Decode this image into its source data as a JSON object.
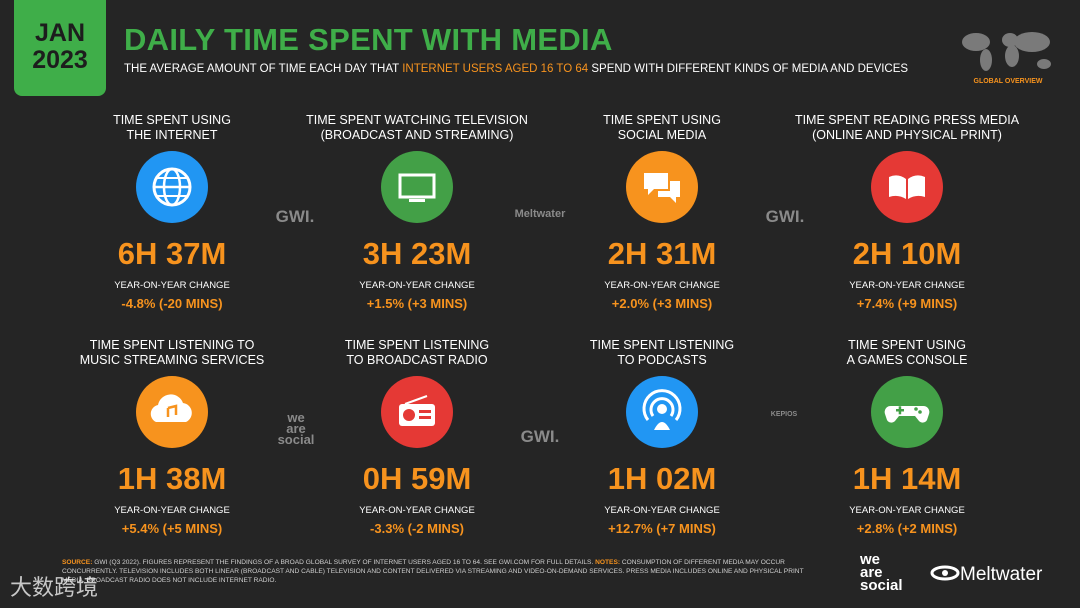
{
  "header": {
    "badge": [
      "JAN",
      "2023"
    ],
    "title": "DAILY TIME SPENT WITH MEDIA",
    "subtitle": [
      "THE AVERAGE AMOUNT OF TIME EACH DAY THAT ",
      "INTERNET USERS AGED 16 TO 64",
      " SPEND WITH DIFFERENT KINDS OF MEDIA AND DEVICES"
    ],
    "map_label": "GLOBAL OVERVIEW"
  },
  "cards": [
    {
      "title": [
        "TIME SPENT USING",
        "THE INTERNET"
      ],
      "value": "6H 37M",
      "change_label": "YEAR-ON-YEAR CHANGE",
      "change": "-4.8% (-20 MINS)"
    },
    {
      "title": [
        "TIME SPENT WATCHING TELEVISION",
        "(BROADCAST AND STREAMING)"
      ],
      "value": "3H 23M",
      "change_label": "YEAR-ON-YEAR CHANGE",
      "change": "+1.5% (+3 MINS)"
    },
    {
      "title": [
        "TIME SPENT USING",
        "SOCIAL MEDIA"
      ],
      "value": "2H 31M",
      "change_label": "YEAR-ON-YEAR CHANGE",
      "change": "+2.0% (+3 MINS)"
    },
    {
      "title": [
        "TIME SPENT READING PRESS MEDIA",
        "(ONLINE AND PHYSICAL PRINT)"
      ],
      "value": "2H 10M",
      "change_label": "YEAR-ON-YEAR CHANGE",
      "change": "+7.4% (+9 MINS)"
    },
    {
      "title": [
        "TIME SPENT LISTENING TO",
        "MUSIC STREAMING SERVICES"
      ],
      "value": "1H 38M",
      "change_label": "YEAR-ON-YEAR CHANGE",
      "change": "+5.4% (+5 MINS)"
    },
    {
      "title": [
        "TIME SPENT LISTENING",
        "TO BROADCAST RADIO"
      ],
      "value": "0H 59M",
      "change_label": "YEAR-ON-YEAR CHANGE",
      "change": "-3.3% (-2 MINS)"
    },
    {
      "title": [
        "TIME SPENT LISTENING",
        "TO PODCASTS"
      ],
      "value": "1H 02M",
      "change_label": "YEAR-ON-YEAR CHANGE",
      "change": "+12.7% (+7 MINS)"
    },
    {
      "title": [
        "TIME SPENT USING",
        "A GAMES CONSOLE"
      ],
      "value": "1H 14M",
      "change_label": "YEAR-ON-YEAR CHANGE",
      "change": "+2.8% (+2 MINS)"
    }
  ],
  "watermarks": [
    [
      "GWI."
    ],
    [
      "Meltwater"
    ],
    [
      "GWI."
    ],
    [
      "we",
      "are",
      "social"
    ],
    [
      "GWI."
    ],
    [
      "KEPIOS"
    ]
  ],
  "footer": {
    "source_label": "SOURCE:",
    "source_text": " GWI (Q3 2022). FIGURES REPRESENT THE FINDINGS OF A BROAD GLOBAL SURVEY OF INTERNET USERS AGED 16 TO 64. SEE GWI.COM FOR FULL DETAILS. ",
    "notes_label": "NOTES:",
    "notes_text": " CONSUMPTION OF DIFFERENT MEDIA MAY OCCUR CONCURRENTLY. TELEVISION INCLUDES BOTH LINEAR (BROADCAST AND CABLE) TELEVISION AND CONTENT DELIVERED VIA STREAMING AND VIDEO-ON-DEMAND SERVICES. PRESS MEDIA INCLUDES ONLINE AND PHYSICAL PRINT MEDIA. BROADCAST RADIO DOES NOT INCLUDE INTERNET RADIO.",
    "logo_we_are_social": [
      "we",
      "are",
      "social"
    ],
    "logo_meltwater": "Meltwater",
    "watermark": "大数跨境"
  }
}
